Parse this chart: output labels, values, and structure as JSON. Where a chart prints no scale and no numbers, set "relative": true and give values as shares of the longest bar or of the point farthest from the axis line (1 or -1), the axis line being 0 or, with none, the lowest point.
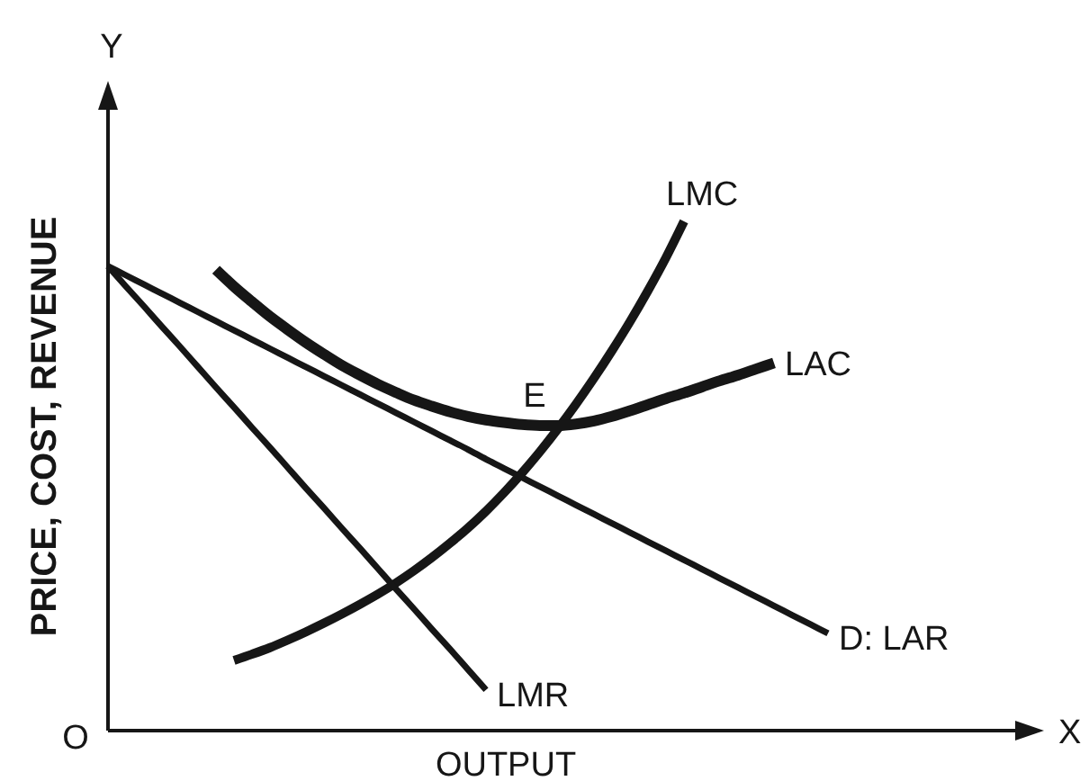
{
  "chart_data": {
    "type": "line",
    "relative": true,
    "xlabel": "OUTPUT",
    "ylabel": "PRICE, COST, REVENUE",
    "categories": [
      null,
      null,
      null,
      null,
      null,
      null,
      null,
      null,
      null,
      null,
      null,
      null,
      null,
      null,
      null,
      null,
      null,
      null,
      null,
      null,
      null,
      null,
      null,
      null,
      null,
      null,
      null,
      null,
      null,
      null,
      null,
      null,
      null,
      null,
      null,
      null,
      null,
      null,
      null,
      null,
      null,
      null,
      null,
      null,
      null,
      null,
      null,
      null,
      null,
      null,
      null,
      null,
      null
    ],
    "series": [
      {
        "name": "LMC",
        "color": "#161616",
        "values": [
          null,
          null,
          null,
          null,
          null,
          null,
          null,
          0.138,
          0.15,
          0.163,
          0.178,
          0.194,
          0.211,
          0.229,
          0.248,
          0.268,
          0.29,
          0.314,
          0.34,
          0.368,
          0.398,
          0.431,
          0.467,
          0.506,
          0.548,
          0.593,
          0.641,
          0.692,
          0.746,
          0.803,
          0.864,
          0.929,
          1,
          null,
          null,
          null,
          null,
          null,
          null,
          null,
          null,
          null,
          null,
          null,
          null,
          null,
          null,
          null,
          null,
          null,
          null,
          null,
          null
        ]
      },
      {
        "name": "LAC",
        "color": "#161616",
        "values": [
          null,
          null,
          null,
          null,
          null,
          null,
          0.905,
          0.872,
          0.842,
          0.813,
          0.787,
          0.762,
          0.739,
          0.717,
          0.698,
          0.68,
          0.664,
          0.649,
          0.637,
          0.626,
          0.617,
          0.61,
          0.605,
          0.601,
          0.599,
          0.599,
          0.602,
          0.608,
          0.617,
          0.628,
          0.64,
          0.652,
          0.663,
          0.675,
          0.687,
          0.698,
          0.71,
          0.722,
          null,
          null,
          null,
          null,
          null,
          null,
          null,
          null,
          null,
          null,
          null,
          null,
          null,
          null,
          null
        ]
      },
      {
        "name": "D: LAR",
        "color": "#161616",
        "values": [
          0.912,
          0.894,
          0.876,
          0.858,
          0.84,
          0.822,
          0.804,
          0.786,
          0.768,
          0.75,
          0.732,
          0.714,
          0.696,
          0.678,
          0.66,
          0.642,
          0.624,
          0.606,
          0.588,
          0.57,
          0.552,
          0.533,
          0.515,
          0.497,
          0.479,
          0.461,
          0.443,
          0.425,
          0.407,
          0.389,
          0.371,
          0.353,
          0.335,
          0.317,
          0.299,
          0.281,
          0.263,
          0.245,
          0.227,
          0.209,
          0.191,
          null,
          null,
          null,
          null,
          null,
          null,
          null,
          null,
          null,
          null,
          null,
          null
        ]
      },
      {
        "name": "LMR",
        "color": "#161616",
        "values": [
          0.912,
          0.872,
          0.833,
          0.793,
          0.754,
          0.714,
          0.674,
          0.635,
          0.595,
          0.556,
          0.516,
          0.476,
          0.437,
          0.397,
          0.358,
          0.318,
          0.278,
          0.239,
          0.199,
          0.16,
          0.12,
          0.08,
          null,
          null,
          null,
          null,
          null,
          null,
          null,
          null,
          null,
          null,
          null,
          null,
          null,
          null,
          null,
          null,
          null,
          null,
          null,
          null,
          null,
          null,
          null,
          null,
          null,
          null,
          null,
          null,
          null,
          null,
          null
        ]
      }
    ],
    "annotations": [
      "E",
      "O",
      "X",
      "Y"
    ]
  }
}
